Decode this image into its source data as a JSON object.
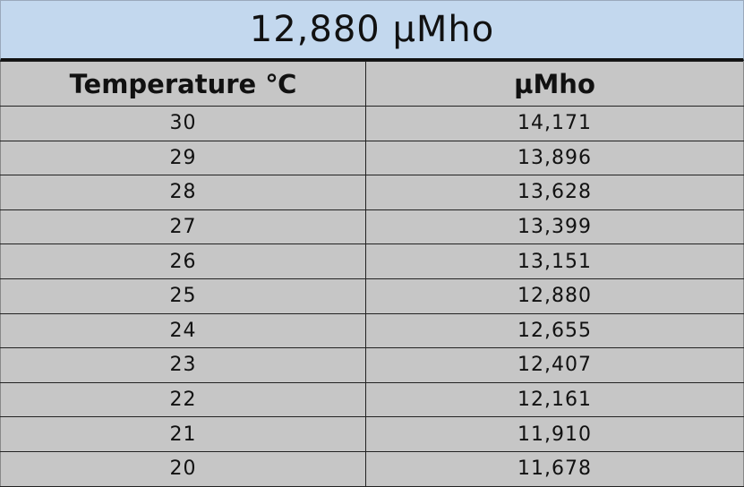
{
  "title": "12,880 µMho",
  "table": {
    "headers": [
      "Temperature ℃",
      "µMho"
    ],
    "rows": [
      [
        "30",
        "14,171"
      ],
      [
        "29",
        "13,896"
      ],
      [
        "28",
        "13,628"
      ],
      [
        "27",
        "13,399"
      ],
      [
        "26",
        "13,151"
      ],
      [
        "25",
        "12,880"
      ],
      [
        "24",
        "12,655"
      ],
      [
        "23",
        "12,407"
      ],
      [
        "22",
        "12,161"
      ],
      [
        "21",
        "11,910"
      ],
      [
        "20",
        "11,678"
      ]
    ]
  },
  "colors": {
    "title_bg": "#c3d8ee",
    "table_bg": "#c6c6c6"
  }
}
